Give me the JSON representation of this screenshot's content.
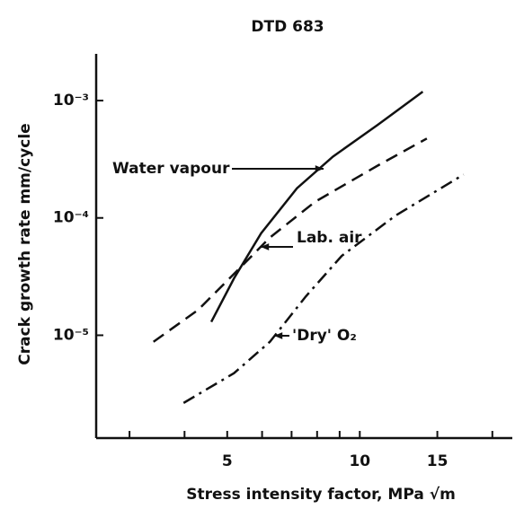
{
  "chart_data": {
    "type": "line",
    "title": "DTD 683",
    "x_label": "Stress intensity factor, MPa √m",
    "y_label": "Crack growth rate mm/cycle",
    "xscale": "log",
    "yscale": "log",
    "xlim": [
      2.52,
      22.2
    ],
    "ylim": [
      1.33e-06,
      0.0025
    ],
    "xticks": [
      5,
      10,
      15
    ],
    "xminorticks": [
      3,
      4,
      6,
      7,
      8,
      9,
      20
    ],
    "yticks": [
      {
        "value": 0.001,
        "label": "10⁻³"
      },
      {
        "value": 0.0001,
        "label": "10⁻⁴"
      },
      {
        "value": 1e-05,
        "label": "10⁻⁵"
      }
    ],
    "color": "#111111",
    "series": [
      {
        "name": "Water vapour",
        "style": "solid",
        "x": [
          4.6,
          5.18,
          5.97,
          7.2,
          8.69,
          10.98,
          13.9
        ],
        "values": [
          1.3e-05,
          3.05e-05,
          7.4e-05,
          0.000179,
          0.000333,
          0.00062,
          0.00119
        ]
      },
      {
        "name": "Lab. air",
        "style": "dashed",
        "x": [
          3.4,
          4.29,
          5.18,
          6.25,
          7.91,
          10.98,
          14.2
        ],
        "values": [
          8.8e-06,
          1.64e-05,
          3.33e-05,
          6.8e-05,
          0.000137,
          0.000279,
          0.000475
        ]
      },
      {
        "name": "'Dry' O₂",
        "style": "dashdot",
        "x": [
          3.98,
          5.18,
          6.25,
          7.54,
          9.1,
          12.07,
          17.2
        ],
        "values": [
          2.65e-06,
          4.75e-06,
          8.8e-06,
          2.14e-05,
          4.75e-05,
          0.000105,
          0.000234
        ]
      }
    ]
  }
}
